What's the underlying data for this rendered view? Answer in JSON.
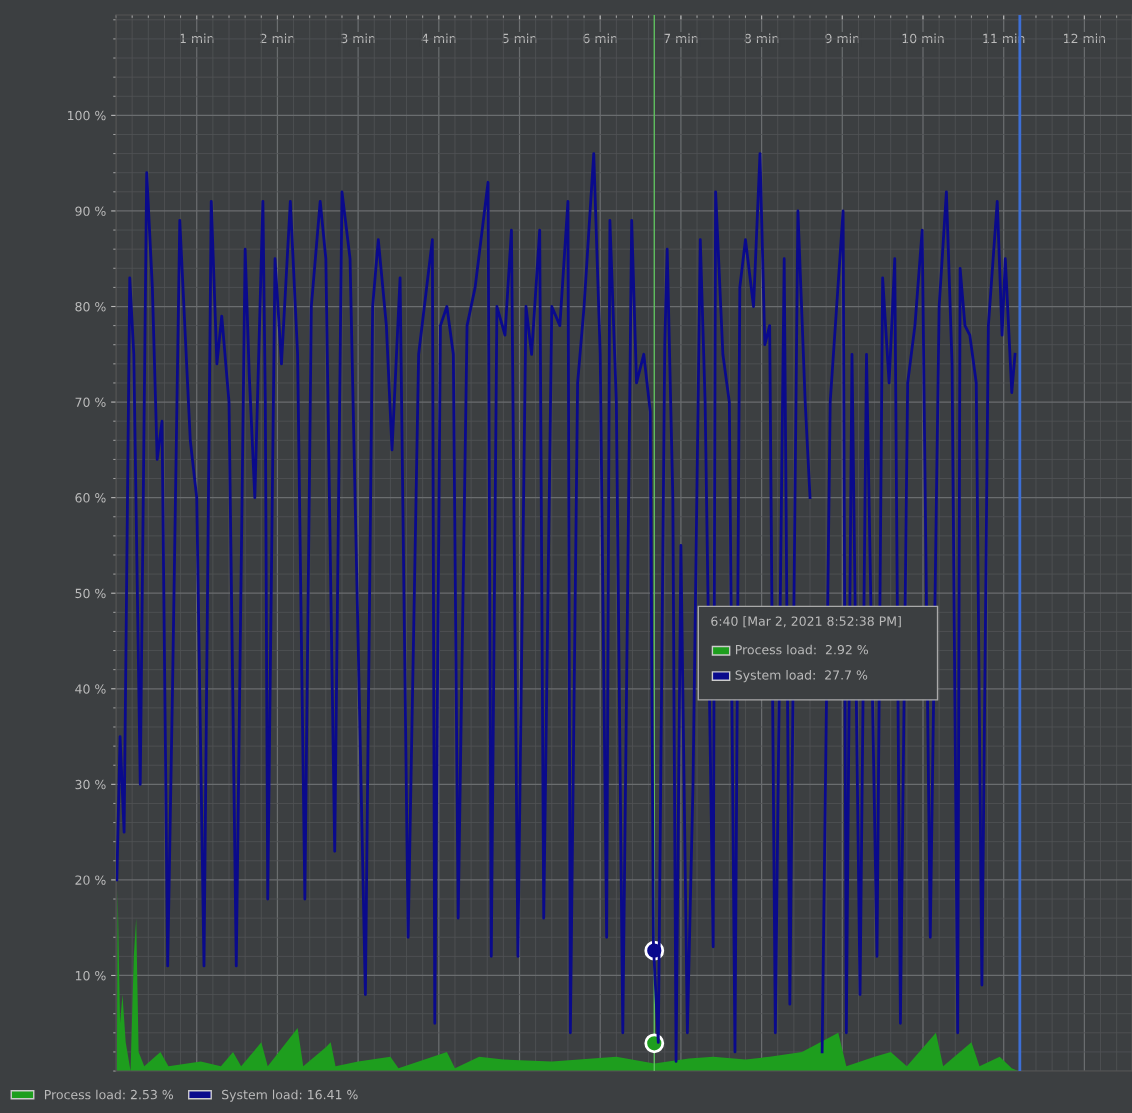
{
  "chart_data": {
    "type": "line",
    "xlim": [
      0,
      12.59
    ],
    "ylim": [
      0,
      110.5
    ],
    "xticks": [
      {
        "value": 1,
        "label": "1 min"
      },
      {
        "value": 2,
        "label": "2 min"
      },
      {
        "value": 3,
        "label": "3 min"
      },
      {
        "value": 4,
        "label": "4 min"
      },
      {
        "value": 5,
        "label": "5 min"
      },
      {
        "value": 6,
        "label": "6 min"
      },
      {
        "value": 7,
        "label": "7 min"
      },
      {
        "value": 8,
        "label": "8 min"
      },
      {
        "value": 9,
        "label": "9 min"
      },
      {
        "value": 10,
        "label": "10 min"
      },
      {
        "value": 11,
        "label": "11 min"
      },
      {
        "value": 12,
        "label": "12 min"
      }
    ],
    "yticks": [
      {
        "value": 10,
        "label": "10 %"
      },
      {
        "value": 20,
        "label": "20 %"
      },
      {
        "value": 30,
        "label": "30 %"
      },
      {
        "value": 40,
        "label": "40 %"
      },
      {
        "value": 50,
        "label": "50 %"
      },
      {
        "value": 60,
        "label": "60 %"
      },
      {
        "value": 70,
        "label": "70 %"
      },
      {
        "value": 80,
        "label": "80 %"
      },
      {
        "value": 90,
        "label": "90 %"
      },
      {
        "value": 100,
        "label": "100 %"
      }
    ],
    "grid": true,
    "legend": "bottom left",
    "series": [
      {
        "name": "Process load: 2.53 %",
        "type": "area",
        "color": "#1e9e1e",
        "x": [
          0.01,
          0.02,
          0.05,
          0.08,
          0.12,
          0.18,
          0.22,
          0.25,
          0.28,
          0.35,
          0.55,
          0.65,
          1.05,
          1.3,
          1.45,
          1.55,
          1.8,
          1.88,
          2.25,
          2.32,
          2.6,
          2.66,
          2.72,
          3.0,
          3.4,
          3.5,
          4.1,
          4.2,
          4.5,
          4.8,
          5.4,
          6.2,
          6.67,
          7.1,
          7.4,
          7.8,
          8.1,
          8.5,
          8.95,
          9.05,
          9.4,
          9.6,
          9.8,
          10.16,
          10.25,
          10.6,
          10.7,
          10.95,
          11.1,
          11.18
        ],
        "values": [
          0,
          19,
          5,
          8,
          3,
          0,
          12,
          16,
          2,
          0.5,
          2,
          0.5,
          1,
          0.5,
          2,
          0.5,
          3,
          0.5,
          4.5,
          0.5,
          2.5,
          3,
          0.5,
          1,
          1.5,
          0.3,
          2,
          0.3,
          1.5,
          1.2,
          1,
          1.5,
          0.8,
          1.3,
          1.5,
          1.2,
          1.5,
          2,
          4,
          0.5,
          1.5,
          2,
          0.5,
          4,
          0.5,
          3,
          0.5,
          1.5,
          0.3,
          0
        ]
      },
      {
        "name": "System load: 16.41 %",
        "color": "#0a0a8c",
        "x": [
          0.01,
          0.05,
          0.1,
          0.17,
          0.22,
          0.3,
          0.38,
          0.45,
          0.51,
          0.57,
          0.64,
          0.7,
          0.79,
          0.92,
          1.0,
          1.09,
          1.18,
          1.25,
          1.31,
          1.4,
          1.49,
          1.6,
          1.65,
          1.72,
          1.82,
          1.85,
          1.88,
          1.97,
          2.05,
          2.16,
          2.25,
          2.34,
          2.42,
          2.53,
          2.6,
          2.71,
          2.8,
          2.9,
          3.0,
          3.09,
          3.18,
          3.25,
          3.35,
          3.42,
          3.52,
          3.62,
          3.75,
          3.92,
          3.95,
          4.02,
          4.1,
          4.18,
          4.24,
          4.35,
          4.45,
          4.61,
          4.65,
          4.72,
          4.82,
          4.9,
          4.98,
          5.08,
          5.15,
          5.25,
          5.3,
          5.4,
          5.5,
          5.6,
          5.63,
          5.72,
          5.8,
          5.92,
          6.0,
          6.08,
          6.12,
          6.2,
          6.28,
          6.39,
          6.45,
          6.54,
          6.62,
          6.66,
          6.72,
          6.8,
          6.83,
          6.9,
          6.94,
          7.0,
          7.08,
          7.15,
          7.24,
          7.3,
          7.4,
          7.43,
          7.52,
          7.6,
          7.67,
          7.73,
          7.8,
          7.9,
          7.98,
          8.04,
          8.1,
          8.17,
          8.28,
          8.35,
          8.45,
          8.54,
          8.6,
          null,
          8.75,
          8.85,
          8.93,
          9.01,
          9.05,
          9.12,
          9.22,
          9.3,
          9.43,
          9.5,
          9.58,
          9.65,
          9.72,
          9.81,
          9.9,
          9.99,
          10.09,
          10.2,
          10.29,
          10.36,
          10.43,
          10.46,
          10.52,
          10.58,
          10.66,
          10.73,
          10.81,
          10.92,
          10.98,
          11.02,
          11.1,
          11.14
        ],
        "values": [
          20,
          35,
          25,
          83,
          75,
          30,
          94,
          82,
          64,
          68,
          11,
          40,
          89,
          66,
          60,
          11,
          91,
          74,
          79,
          70,
          11,
          86,
          73,
          60,
          91,
          70,
          18,
          85,
          74,
          91,
          75,
          18,
          80,
          91,
          85,
          23,
          92,
          85,
          45,
          8,
          80,
          87,
          78,
          65,
          83,
          14,
          75,
          87,
          5,
          78,
          80,
          75,
          16,
          78,
          82,
          93,
          12,
          80,
          77,
          88,
          12,
          80,
          75,
          88,
          16,
          80,
          78,
          91,
          4,
          72,
          80,
          96,
          75,
          14,
          89,
          70,
          4,
          89,
          72,
          75,
          69,
          13,
          3,
          76,
          86,
          60,
          1,
          55,
          4,
          30,
          87,
          70,
          13,
          92,
          75,
          70,
          2,
          82,
          87,
          80,
          96,
          76,
          78,
          4,
          85,
          7,
          90,
          70,
          60,
          null,
          2,
          70,
          80,
          90,
          4,
          75,
          8,
          75,
          12,
          83,
          72,
          85,
          5,
          72,
          78,
          88,
          14,
          80,
          92,
          74,
          4,
          84,
          78,
          77,
          72,
          9,
          78,
          91,
          77,
          85,
          71,
          75
        ]
      },
      {
        "type": "scatter",
        "color": "#1e9e1e",
        "marker": "circle",
        "x": [
          6.67
        ],
        "values": [
          2.9
        ]
      },
      {
        "type": "scatter",
        "color": "#0a0a8c",
        "marker": "circle",
        "x": [
          6.67
        ],
        "values": [
          12.6
        ]
      }
    ],
    "ref_lines": [
      {
        "axis": "x",
        "value": 6.67,
        "color": "#5fbf5f"
      },
      {
        "axis": "x",
        "value": 11.2,
        "color": "#3d6fd6"
      }
    ],
    "annotations": [
      "6:40 [Mar 2, 2021 8:52:38 PM]",
      "Process load:  2.92 %",
      "System load:  27.7 %"
    ]
  }
}
